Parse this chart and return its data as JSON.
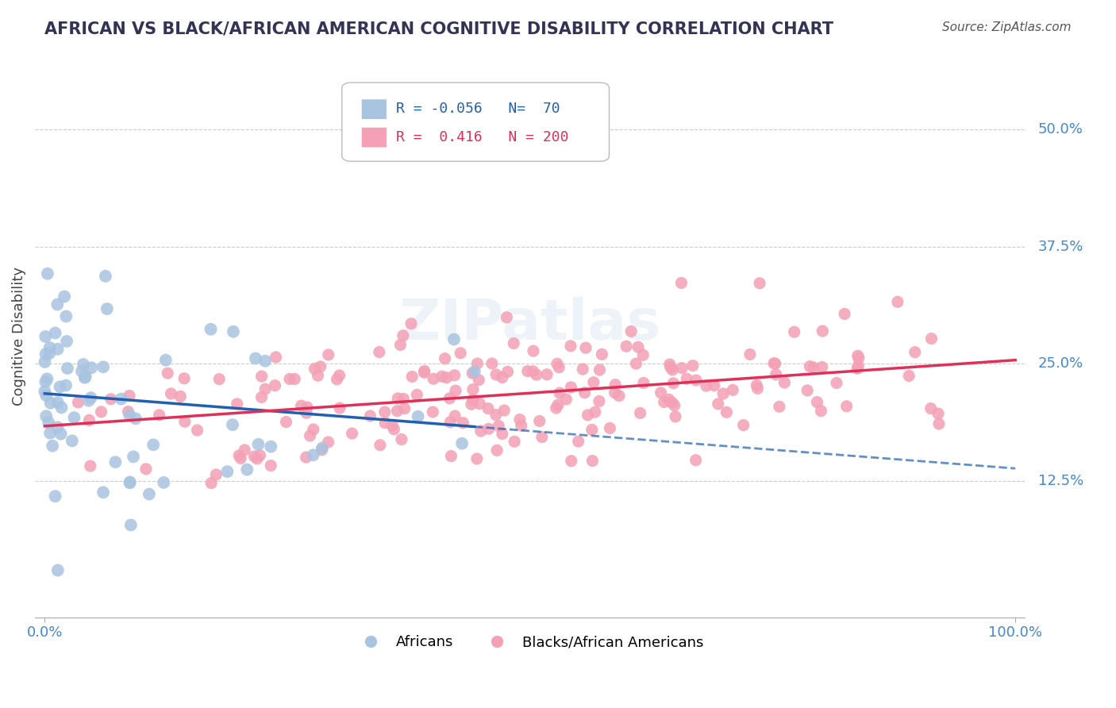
{
  "title": "AFRICAN VS BLACK/AFRICAN AMERICAN COGNITIVE DISABILITY CORRELATION CHART",
  "source": "Source: ZipAtlas.com",
  "ylabel": "Cognitive Disability",
  "xlabel": "",
  "legend_label1": "Africans",
  "legend_label2": "Blacks/African Americans",
  "r1": -0.056,
  "n1": 70,
  "r2": 0.416,
  "n2": 200,
  "color1": "#a8c4e0",
  "color2": "#f4a0b5",
  "line1_color": "#2060b0",
  "line2_color": "#e0305a",
  "watermark": "ZIPatlas",
  "bg_color": "#ffffff",
  "grid_color": "#cccccc",
  "title_color": "#333355",
  "tick_color": "#4488cc",
  "xlim": [
    0.0,
    1.0
  ],
  "ylim": [
    0.0,
    0.55
  ],
  "y_ticks": [
    0.125,
    0.25,
    0.375,
    0.5
  ],
  "y_tick_labels": [
    "12.5%",
    "25.0%",
    "37.5%",
    "50.0%"
  ],
  "x_tick_labels": [
    "0.0%",
    "100.0%"
  ],
  "x_ticks": [
    0.0,
    1.0
  ]
}
